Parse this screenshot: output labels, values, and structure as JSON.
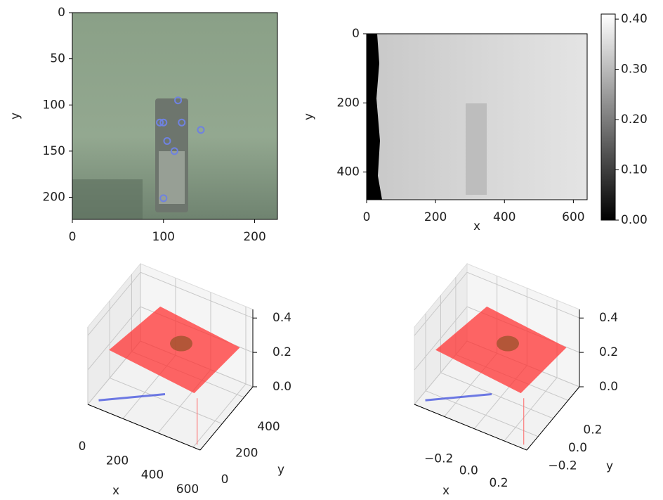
{
  "chart_data": [
    {
      "type": "image",
      "ylabel": "y",
      "xlim": [
        0,
        225
      ],
      "ylim": [
        224,
        0
      ],
      "xticks": [
        0,
        100,
        200
      ],
      "yticks": [
        0,
        50,
        100,
        150,
        200
      ],
      "points": {
        "x": [
          116,
          96,
          100,
          120,
          141,
          104,
          112,
          100
        ],
        "values": [
          95,
          119,
          119,
          119,
          127,
          139,
          150,
          201
        ],
        "color": "#6f82e0"
      }
    },
    {
      "type": "image",
      "xlabel": "x",
      "ylabel": "y",
      "xlim": [
        0,
        640
      ],
      "ylim": [
        480,
        0
      ],
      "xticks": [
        0,
        200,
        400,
        600
      ],
      "yticks": [
        0,
        200,
        400
      ],
      "colorbar": {
        "ylim": [
          0,
          0.41
        ],
        "yticks": [
          {
            "value": 0,
            "label": "0.00"
          },
          {
            "value": 0.1,
            "label": "0.10"
          },
          {
            "value": 0.2,
            "label": "0.20"
          },
          {
            "value": 0.3,
            "label": "0.30"
          },
          {
            "value": 0.4,
            "label": "0.40"
          }
        ]
      }
    },
    {
      "type": "surface3d",
      "xlabel": "x",
      "ylabel": "y",
      "xlim": [
        0,
        640
      ],
      "ylim": [
        0,
        480
      ],
      "zlim": [
        0,
        0.45
      ],
      "xticks": [
        0,
        200,
        400,
        600
      ],
      "yticks": [
        0,
        200,
        400
      ],
      "zticks": [
        {
          "value": 0,
          "label": "0.0"
        },
        {
          "value": 0.2,
          "label": "0.2"
        },
        {
          "value": 0.4,
          "label": "0.4"
        }
      ]
    },
    {
      "type": "surface3d",
      "xlabel": "x",
      "ylabel": "y",
      "xlim": [
        -0.4,
        0.35
      ],
      "ylim": [
        -0.35,
        0.35
      ],
      "zlim": [
        0,
        0.45
      ],
      "xticks": [
        {
          "value": -0.2,
          "label": "−0.2"
        },
        {
          "value": 0,
          "label": "0.0"
        },
        {
          "value": 0.2,
          "label": "0.2"
        }
      ],
      "yticks": [
        {
          "value": -0.2,
          "label": "−0.2"
        },
        {
          "value": 0,
          "label": "0.0"
        },
        {
          "value": 0.2,
          "label": "0.2"
        }
      ],
      "zticks": [
        {
          "value": 0,
          "label": "0.0"
        },
        {
          "value": 0.2,
          "label": "0.2"
        },
        {
          "value": 0.4,
          "label": "0.4"
        }
      ]
    }
  ]
}
